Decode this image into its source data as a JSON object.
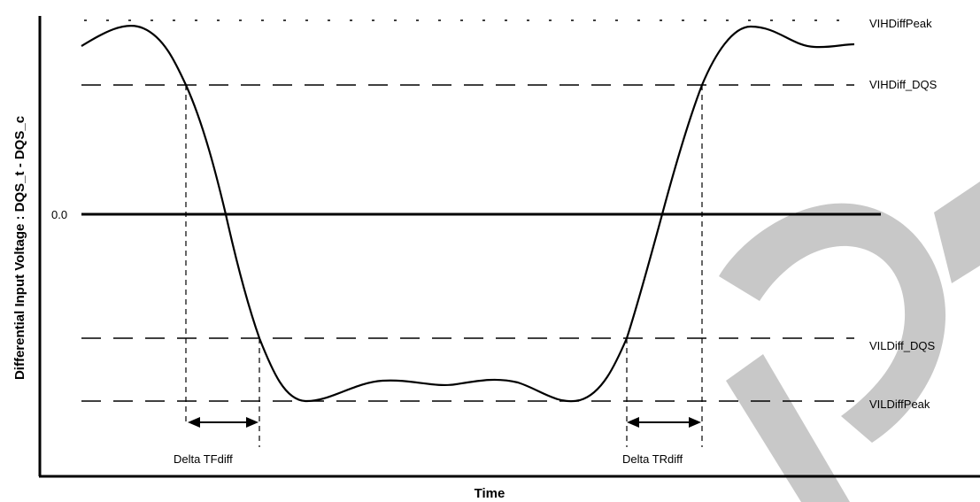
{
  "diagram": {
    "y_axis_title": "Differential Input Voltage : DQS_t - DQS_c",
    "x_axis_title": "Time",
    "levels": {
      "vih_diff_peak": "VIHDiffPeak",
      "vih_diff_dqs": "VIHDiff_DQS",
      "zero": "0.0",
      "vil_diff_dqs": "VILDiff_DQS",
      "vil_diff_peak": "VILDiffPeak"
    },
    "delta_fall_label": "Delta TFdiff",
    "delta_rise_label": "Delta TRdiff",
    "watermark_color": "#c8c8c8"
  }
}
